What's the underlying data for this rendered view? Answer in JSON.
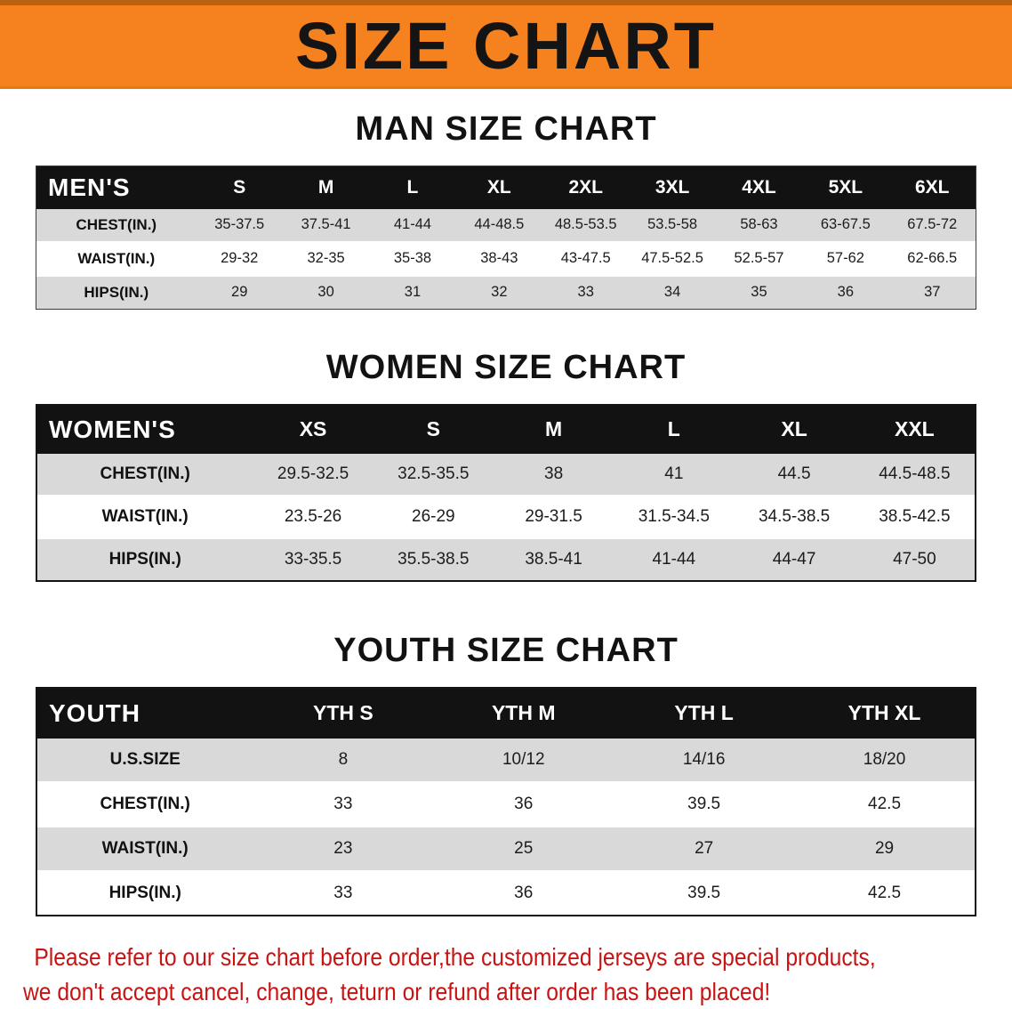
{
  "banner": {
    "title": "SIZE CHART"
  },
  "sections": [
    {
      "id": "men",
      "heading": "MAN SIZE CHART",
      "table": {
        "label": "MEN'S",
        "columns": [
          "S",
          "M",
          "L",
          "XL",
          "2XL",
          "3XL",
          "4XL",
          "5XL",
          "6XL"
        ],
        "rows": [
          {
            "label": "CHEST(IN.)",
            "values": [
              "35-37.5",
              "37.5-41",
              "41-44",
              "44-48.5",
              "48.5-53.5",
              "53.5-58",
              "58-63",
              "63-67.5",
              "67.5-72"
            ]
          },
          {
            "label": "WAIST(IN.)",
            "values": [
              "29-32",
              "32-35",
              "35-38",
              "38-43",
              "43-47.5",
              "47.5-52.5",
              "52.5-57",
              "57-62",
              "62-66.5"
            ]
          },
          {
            "label": "HIPS(IN.)",
            "values": [
              "29",
              "30",
              "31",
              "32",
              "33",
              "34",
              "35",
              "36",
              "37"
            ]
          }
        ],
        "label_col_pct": 17
      }
    },
    {
      "id": "women",
      "heading": "WOMEN SIZE CHART",
      "table": {
        "label": "WOMEN'S",
        "columns": [
          "XS",
          "S",
          "M",
          "L",
          "XL",
          "XXL"
        ],
        "rows": [
          {
            "label": "CHEST(IN.)",
            "values": [
              "29.5-32.5",
              "32.5-35.5",
              "38",
              "41",
              "44.5",
              "44.5-48.5"
            ]
          },
          {
            "label": "WAIST(IN.)",
            "values": [
              "23.5-26",
              "26-29",
              "29-31.5",
              "31.5-34.5",
              "34.5-38.5",
              "38.5-42.5"
            ]
          },
          {
            "label": "HIPS(IN.)",
            "values": [
              "33-35.5",
              "35.5-38.5",
              "38.5-41",
              "41-44",
              "44-47",
              "47-50"
            ]
          }
        ],
        "label_col_pct": 23
      }
    },
    {
      "id": "youth",
      "heading": "YOUTH SIZE CHART",
      "table": {
        "label": "YOUTH",
        "columns": [
          "YTH S",
          "YTH M",
          "YTH L",
          "YTH XL"
        ],
        "rows": [
          {
            "label": "U.S.SIZE",
            "values": [
              "8",
              "10/12",
              "14/16",
              "18/20"
            ]
          },
          {
            "label": "CHEST(IN.)",
            "values": [
              "33",
              "36",
              "39.5",
              "42.5"
            ]
          },
          {
            "label": "WAIST(IN.)",
            "values": [
              "23",
              "25",
              "27",
              "29"
            ]
          },
          {
            "label": "HIPS(IN.)",
            "values": [
              "33",
              "36",
              "39.5",
              "42.5"
            ]
          }
        ],
        "label_col_pct": 23
      }
    }
  ],
  "disclaimer": {
    "line1": "Please refer to our size chart before order,the customized jerseys are special products,",
    "line2": "we don't accept cancel, change, teturn or refund after order has been placed!"
  },
  "colors": {
    "banner_bg": "#F6821F",
    "header_bg": "#121212",
    "stripe_bg": "#D9D9D9",
    "disclaimer_color": "#C91313"
  }
}
